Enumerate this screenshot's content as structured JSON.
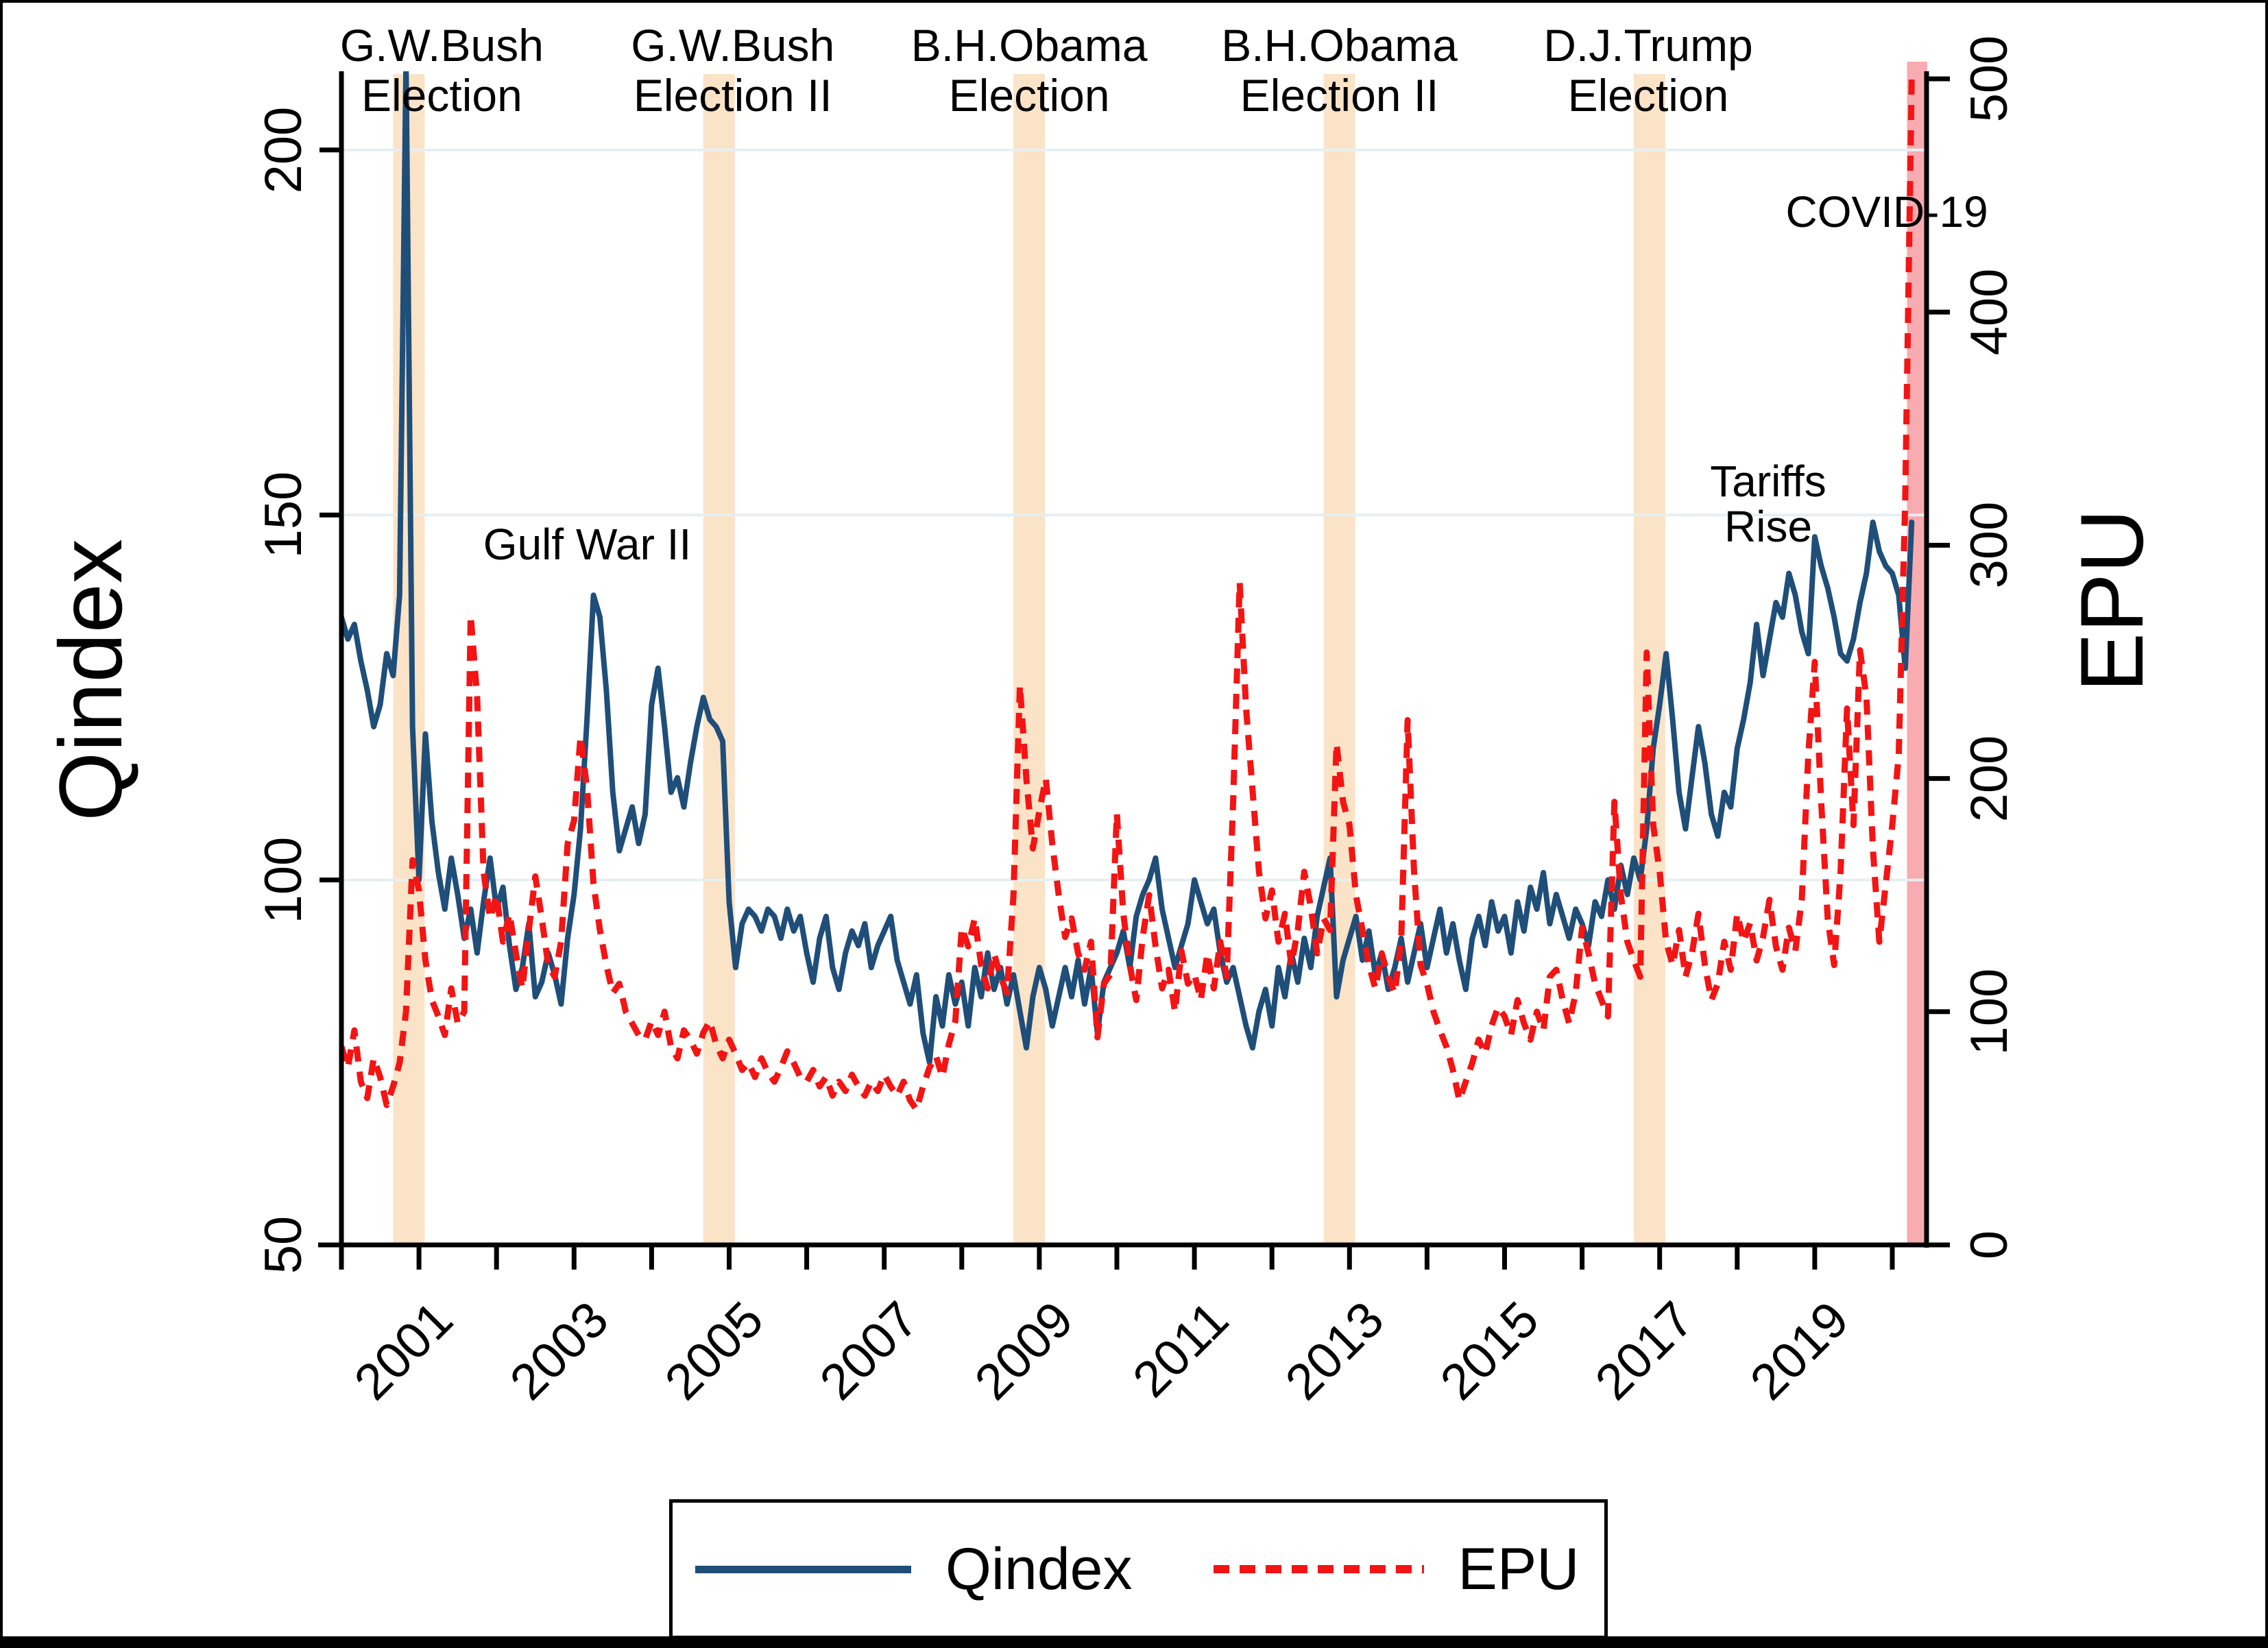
{
  "chart_data": {
    "type": "line",
    "title": "",
    "grid": {
      "orientation": "horizontal",
      "at_left_values": [
        100,
        150,
        200
      ]
    },
    "x_axis": {
      "start_year": 2000,
      "step_months": 1,
      "tick_years": [
        2000,
        2001,
        2002,
        2003,
        2004,
        2005,
        2006,
        2007,
        2008,
        2009,
        2010,
        2011,
        2012,
        2013,
        2014,
        2015,
        2016,
        2017,
        2018,
        2019,
        2020
      ],
      "label_years": [
        2001,
        2003,
        2005,
        2007,
        2009,
        2011,
        2013,
        2015,
        2017,
        2019
      ],
      "range": [
        2000.0,
        2020.45
      ]
    },
    "left_axis": {
      "title": "Qindex",
      "ticks": [
        50,
        100,
        150,
        200
      ],
      "range": [
        50,
        210.5
      ]
    },
    "right_axis": {
      "title": "EPU",
      "ticks": [
        0,
        100,
        200,
        300,
        400,
        500
      ],
      "range": [
        0,
        503
      ]
    },
    "series": [
      {
        "name": "Qindex",
        "axis": "left",
        "style": "solid",
        "color": "#1f4e79",
        "values": [
          136,
          133,
          135,
          130,
          126,
          121,
          124,
          131,
          128,
          139,
          212,
          121,
          100,
          120,
          108,
          101,
          96,
          103,
          98,
          92,
          96,
          90,
          97,
          103,
          96,
          99,
          91,
          85,
          88,
          94,
          84,
          86,
          90,
          87,
          83,
          92,
          98,
          107,
          122,
          139,
          136,
          126,
          112,
          104,
          107,
          110,
          105,
          109,
          124,
          129,
          121,
          112,
          114,
          110,
          116,
          121,
          125,
          122,
          121,
          119,
          97,
          88,
          94,
          96,
          95,
          93,
          96,
          95,
          92,
          96,
          93,
          95,
          90,
          86,
          92,
          95,
          88,
          85,
          90,
          93,
          91,
          94,
          88,
          91,
          93,
          95,
          89,
          86,
          83,
          87,
          79,
          75,
          84,
          80,
          87,
          83,
          86,
          80,
          88,
          84,
          90,
          85,
          88,
          83,
          87,
          82,
          77,
          84,
          88,
          85,
          80,
          84,
          88,
          84,
          89,
          83,
          88,
          79,
          86,
          88,
          90,
          93,
          88,
          95,
          98,
          100,
          103,
          96,
          92,
          88,
          91,
          94,
          100,
          97,
          94,
          96,
          90,
          86,
          88,
          84,
          80,
          77,
          82,
          85,
          80,
          88,
          84,
          90,
          86,
          92,
          88,
          95,
          99,
          103,
          84,
          89,
          92,
          95,
          89,
          93,
          87,
          90,
          85,
          88,
          92,
          86,
          90,
          94,
          88,
          92,
          96,
          90,
          94,
          89,
          85,
          92,
          95,
          91,
          97,
          93,
          95,
          90,
          97,
          93,
          99,
          96,
          101,
          94,
          98,
          95,
          92,
          96,
          94,
          91,
          97,
          95,
          100,
          96,
          102,
          98,
          103,
          100,
          107,
          118,
          124,
          131,
          122,
          112,
          107,
          114,
          121,
          116,
          109,
          106,
          112,
          110,
          118,
          122,
          127,
          135,
          128,
          133,
          138,
          136,
          142,
          139,
          134,
          131,
          147,
          143,
          140,
          136,
          131,
          130,
          133,
          138,
          142,
          149,
          145,
          143,
          142,
          139,
          129,
          149
        ]
      },
      {
        "name": "EPU",
        "axis": "right",
        "style": "dashed",
        "color": "#f31414",
        "values": [
          85,
          76,
          92,
          70,
          63,
          80,
          72,
          60,
          68,
          78,
          100,
          165,
          152,
          122,
          105,
          98,
          90,
          110,
          95,
          100,
          270,
          235,
          160,
          140,
          150,
          130,
          142,
          125,
          110,
          135,
          158,
          140,
          120,
          115,
          130,
          172,
          182,
          218,
          196,
          155,
          135,
          120,
          108,
          112,
          100,
          95,
          90,
          88,
          96,
          90,
          100,
          85,
          80,
          92,
          88,
          82,
          91,
          96,
          86,
          80,
          88,
          82,
          75,
          78,
          72,
          80,
          74,
          70,
          76,
          83,
          78,
          72,
          70,
          75,
          68,
          72,
          64,
          70,
          66,
          73,
          68,
          64,
          70,
          66,
          73,
          68,
          64,
          70,
          62,
          58,
          68,
          76,
          81,
          72,
          86,
          96,
          136,
          128,
          140,
          120,
          110,
          125,
          115,
          108,
          150,
          240,
          200,
          170,
          186,
          200,
          172,
          150,
          132,
          140,
          125,
          118,
          130,
          89,
          112,
          116,
          185,
          142,
          120,
          105,
          132,
          150,
          128,
          110,
          118,
          100,
          126,
          112,
          116,
          105,
          125,
          110,
          130,
          115,
          190,
          284,
          230,
          195,
          160,
          140,
          152,
          130,
          142,
          120,
          135,
          160,
          145,
          125,
          140,
          135,
          215,
          190,
          180,
          150,
          135,
          120,
          110,
          125,
          115,
          108,
          130,
          225,
          160,
          120,
          112,
          100,
          92,
          85,
          75,
          62,
          70,
          78,
          88,
          82,
          94,
          102,
          98,
          90,
          105,
          95,
          88,
          100,
          92,
          115,
          118,
          105,
          95,
          108,
          136,
          125,
          112,
          105,
          98,
          190,
          150,
          130,
          122,
          115,
          254,
          180,
          160,
          130,
          120,
          135,
          115,
          125,
          142,
          120,
          105,
          112,
          130,
          118,
          142,
          130,
          138,
          122,
          132,
          148,
          128,
          118,
          136,
          126,
          148,
          210,
          250,
          190,
          140,
          120,
          160,
          230,
          180,
          255,
          235,
          170,
          130,
          155,
          180,
          210,
          320,
          500
        ]
      }
    ],
    "event_bands": [
      {
        "kind": "election",
        "year": 2000.87,
        "lines": [
          "G.W.Bush",
          "Election"
        ]
      },
      {
        "kind": "election",
        "year": 2004.87,
        "lines": [
          "G.W.Bush",
          "Election II"
        ]
      },
      {
        "kind": "election",
        "year": 2008.87,
        "lines": [
          "B.H.Obama",
          "Election"
        ]
      },
      {
        "kind": "election",
        "year": 2012.87,
        "lines": [
          "B.H.Obama",
          "Election II"
        ]
      },
      {
        "kind": "election",
        "year": 2016.87,
        "lines": [
          "D.J.Trump",
          "Election"
        ]
      },
      {
        "kind": "covid",
        "year_start": 2020.19,
        "year_end": 2020.45,
        "lines": []
      }
    ],
    "annotations": [
      {
        "lines": [
          "Gulf War II"
        ],
        "x_year": 2003.17,
        "y_qindex": 146
      },
      {
        "lines": [
          "Tariffs",
          "Rise"
        ],
        "x_year": 2018.4,
        "y_qindex": 151.5
      },
      {
        "lines": [
          "COVID-19"
        ],
        "x_year": 2019.93,
        "y_qindex": 191.5
      }
    ],
    "legend": [
      "Qindex",
      "EPU"
    ],
    "colors": {
      "qindex_line": "#1f4e79",
      "epu_line": "#f31414",
      "election_band": "#fbe3c7",
      "covid_band": "#f8abb0",
      "gridline": "#e6f0f2",
      "axis": "#000000"
    }
  }
}
